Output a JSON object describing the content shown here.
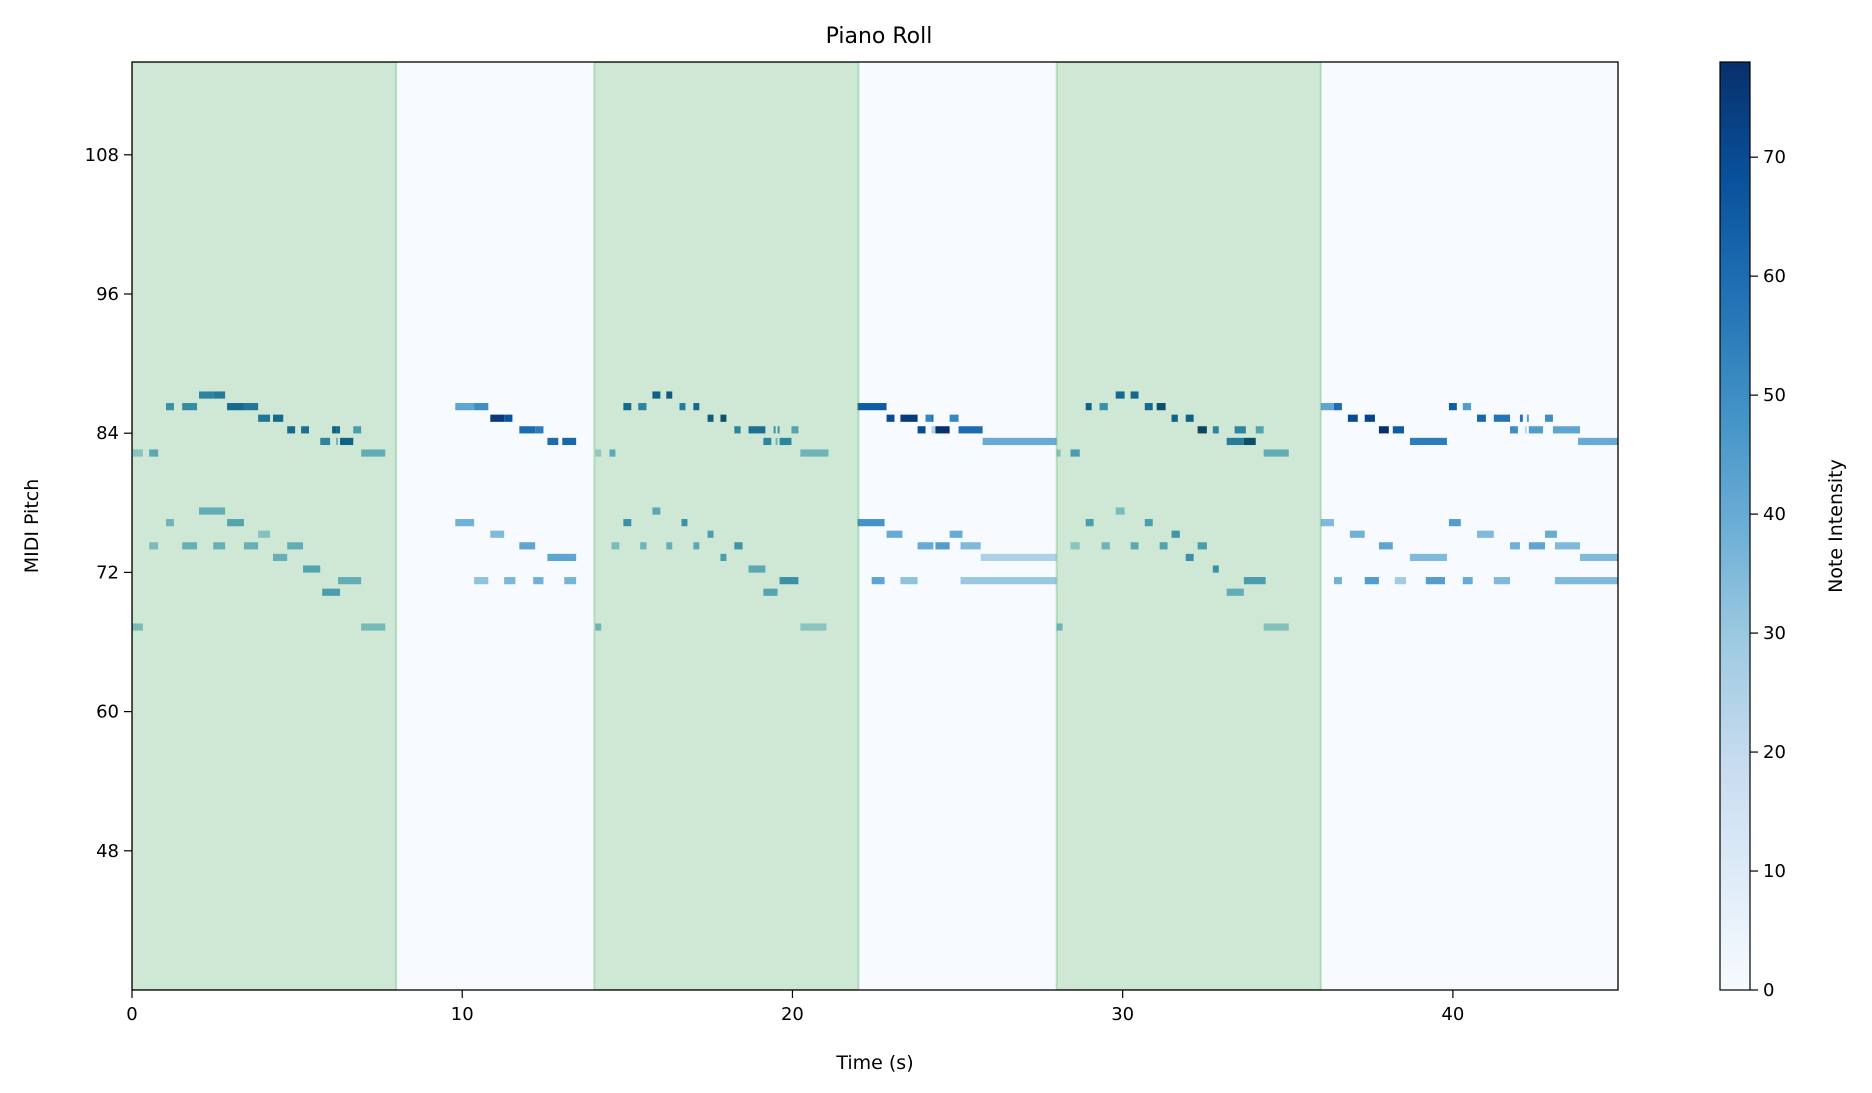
{
  "chart_data": {
    "type": "heatmap",
    "title": "Piano Roll",
    "xlabel": "Time (s)",
    "ylabel": "MIDI Pitch",
    "xlim": [
      0,
      45
    ],
    "ylim": [
      36,
      116
    ],
    "xticks": [
      0,
      10,
      20,
      30,
      40
    ],
    "yticks": [
      48,
      60,
      72,
      84,
      96,
      108
    ],
    "grid": false,
    "colormap": "Blues",
    "colorbar": {
      "label": "Note Intensity",
      "range": [
        0,
        78
      ],
      "ticks": [
        0,
        10,
        20,
        30,
        40,
        50,
        60,
        70
      ]
    },
    "highlight_spans": {
      "color": "#2ca02c",
      "opacity": 0.2,
      "ranges": [
        [
          0,
          8
        ],
        [
          14,
          22
        ],
        [
          28,
          36
        ]
      ]
    },
    "note_fields": [
      "start",
      "end",
      "pitch",
      "intensity"
    ],
    "notes": [
      [
        2.03,
        2.46,
        87,
        55
      ],
      [
        2.46,
        2.82,
        87,
        58
      ],
      [
        1.03,
        1.27,
        86,
        50
      ],
      [
        1.52,
        1.97,
        86,
        52
      ],
      [
        2.88,
        3.39,
        86,
        65
      ],
      [
        3.39,
        3.82,
        86,
        60
      ],
      [
        3.82,
        4.18,
        85,
        60
      ],
      [
        4.27,
        4.58,
        85,
        65
      ],
      [
        4.7,
        4.94,
        84,
        65
      ],
      [
        5.12,
        5.36,
        84,
        62
      ],
      [
        6.06,
        6.18,
        84,
        68
      ],
      [
        6.18,
        6.3,
        84,
        65
      ],
      [
        6.7,
        6.94,
        84,
        45
      ],
      [
        5.7,
        6.0,
        83,
        55
      ],
      [
        6.18,
        6.24,
        83,
        35
      ],
      [
        6.3,
        6.7,
        83,
        68
      ],
      [
        0.03,
        0.33,
        82,
        28
      ],
      [
        0.52,
        0.79,
        82,
        40
      ],
      [
        6.94,
        7.67,
        82,
        38
      ],
      [
        2.03,
        2.82,
        77,
        38
      ],
      [
        1.03,
        1.27,
        76,
        35
      ],
      [
        2.88,
        3.39,
        76,
        42
      ],
      [
        3.82,
        4.18,
        75,
        30
      ],
      [
        0.52,
        0.79,
        74,
        32
      ],
      [
        1.52,
        1.97,
        74,
        37
      ],
      [
        2.46,
        2.82,
        74,
        37
      ],
      [
        3.39,
        3.82,
        74,
        37
      ],
      [
        4.7,
        5.18,
        74,
        38
      ],
      [
        4.27,
        4.7,
        73,
        37
      ],
      [
        5.18,
        5.7,
        72,
        42
      ],
      [
        6.24,
        6.94,
        71,
        38
      ],
      [
        5.76,
        6.3,
        70,
        45
      ],
      [
        0.0,
        0.33,
        67,
        32
      ],
      [
        6.94,
        7.67,
        67,
        33
      ],
      [
        9.79,
        10.36,
        86,
        42
      ],
      [
        10.36,
        10.79,
        86,
        50
      ],
      [
        10.85,
        11.27,
        85,
        75
      ],
      [
        11.27,
        11.52,
        85,
        68
      ],
      [
        11.73,
        12.21,
        84,
        60
      ],
      [
        12.21,
        12.46,
        84,
        55
      ],
      [
        12.58,
        12.91,
        83,
        60
      ],
      [
        13.03,
        13.45,
        83,
        62
      ],
      [
        9.79,
        10.36,
        76,
        38
      ],
      [
        10.85,
        11.27,
        75,
        35
      ],
      [
        11.73,
        12.21,
        74,
        42
      ],
      [
        12.58,
        13.45,
        73,
        42
      ],
      [
        10.36,
        10.79,
        71,
        32
      ],
      [
        11.27,
        11.61,
        71,
        36
      ],
      [
        12.15,
        12.46,
        71,
        38
      ],
      [
        13.09,
        13.45,
        71,
        37
      ],
      [
        15.76,
        16.0,
        87,
        68
      ],
      [
        16.18,
        16.36,
        87,
        70
      ],
      [
        14.88,
        15.12,
        86,
        65
      ],
      [
        15.33,
        15.58,
        86,
        55
      ],
      [
        16.58,
        16.76,
        86,
        58
      ],
      [
        17.0,
        17.18,
        86,
        65
      ],
      [
        17.43,
        17.61,
        85,
        70
      ],
      [
        17.82,
        18.0,
        85,
        75
      ],
      [
        18.24,
        18.43,
        84,
        55
      ],
      [
        18.67,
        19.18,
        84,
        62
      ],
      [
        19.43,
        19.49,
        84,
        50
      ],
      [
        19.55,
        19.61,
        84,
        50
      ],
      [
        19.97,
        20.18,
        84,
        42
      ],
      [
        19.12,
        19.36,
        83,
        55
      ],
      [
        19.49,
        19.55,
        83,
        35
      ],
      [
        19.61,
        19.97,
        83,
        55
      ],
      [
        14.03,
        14.21,
        82,
        25
      ],
      [
        14.46,
        14.64,
        82,
        40
      ],
      [
        20.24,
        21.09,
        82,
        35
      ],
      [
        15.76,
        16.0,
        77,
        40
      ],
      [
        14.88,
        15.12,
        76,
        50
      ],
      [
        16.64,
        16.82,
        76,
        50
      ],
      [
        17.43,
        17.61,
        75,
        45
      ],
      [
        14.52,
        14.76,
        74,
        32
      ],
      [
        15.39,
        15.58,
        74,
        35
      ],
      [
        16.18,
        16.36,
        74,
        37
      ],
      [
        17.0,
        17.18,
        74,
        40
      ],
      [
        18.24,
        18.49,
        74,
        48
      ],
      [
        17.82,
        18.0,
        73,
        45
      ],
      [
        18.67,
        19.18,
        72,
        40
      ],
      [
        19.61,
        20.18,
        71,
        50
      ],
      [
        19.12,
        19.55,
        70,
        42
      ],
      [
        14.03,
        14.21,
        67,
        35
      ],
      [
        20.24,
        21.03,
        67,
        28
      ],
      [
        21.97,
        22.85,
        86,
        65
      ],
      [
        22.85,
        23.09,
        85,
        70
      ],
      [
        23.27,
        23.79,
        85,
        75
      ],
      [
        24.03,
        24.21,
        85,
        52
      ],
      [
        24.21,
        24.27,
        85,
        60
      ],
      [
        24.76,
        25.03,
        85,
        52
      ],
      [
        23.79,
        24.03,
        84,
        70
      ],
      [
        24.21,
        24.33,
        84,
        25
      ],
      [
        24.33,
        24.76,
        84,
        78
      ],
      [
        25.03,
        25.76,
        84,
        60
      ],
      [
        25.76,
        28.0,
        83,
        40
      ],
      [
        21.97,
        22.79,
        76,
        48
      ],
      [
        22.85,
        23.33,
        75,
        40
      ],
      [
        24.76,
        25.15,
        75,
        40
      ],
      [
        23.79,
        24.27,
        74,
        40
      ],
      [
        24.33,
        24.76,
        74,
        45
      ],
      [
        25.09,
        25.7,
        74,
        35
      ],
      [
        25.7,
        28.0,
        73,
        25
      ],
      [
        22.4,
        22.79,
        71,
        42
      ],
      [
        23.27,
        23.79,
        71,
        32
      ],
      [
        25.09,
        28.0,
        71,
        30
      ],
      [
        29.79,
        30.06,
        87,
        65
      ],
      [
        30.24,
        30.48,
        87,
        65
      ],
      [
        28.88,
        29.06,
        86,
        68
      ],
      [
        29.3,
        29.55,
        86,
        50
      ],
      [
        30.67,
        30.91,
        86,
        65
      ],
      [
        31.03,
        31.3,
        86,
        75
      ],
      [
        31.48,
        31.67,
        85,
        68
      ],
      [
        31.91,
        32.15,
        85,
        68
      ],
      [
        32.27,
        32.55,
        84,
        78
      ],
      [
        32.73,
        32.91,
        84,
        55
      ],
      [
        33.39,
        33.73,
        84,
        55
      ],
      [
        34.03,
        34.27,
        84,
        42
      ],
      [
        33.15,
        33.67,
        83,
        58
      ],
      [
        33.67,
        34.03,
        83,
        75
      ],
      [
        28.0,
        28.12,
        82,
        30
      ],
      [
        28.42,
        28.7,
        82,
        45
      ],
      [
        34.27,
        35.03,
        82,
        38
      ],
      [
        29.79,
        30.06,
        77,
        32
      ],
      [
        28.88,
        29.12,
        76,
        45
      ],
      [
        30.67,
        30.91,
        76,
        45
      ],
      [
        31.48,
        31.73,
        75,
        48
      ],
      [
        28.42,
        28.7,
        74,
        28
      ],
      [
        29.36,
        29.61,
        74,
        35
      ],
      [
        30.24,
        30.48,
        74,
        40
      ],
      [
        31.12,
        31.36,
        74,
        42
      ],
      [
        32.27,
        32.55,
        74,
        45
      ],
      [
        31.91,
        32.15,
        73,
        50
      ],
      [
        32.73,
        32.91,
        72,
        50
      ],
      [
        33.67,
        34.33,
        71,
        45
      ],
      [
        33.15,
        33.67,
        70,
        38
      ],
      [
        28.0,
        28.18,
        67,
        35
      ],
      [
        34.27,
        35.03,
        67,
        30
      ],
      [
        36.0,
        36.4,
        86,
        42
      ],
      [
        36.4,
        36.64,
        86,
        60
      ],
      [
        39.88,
        40.12,
        86,
        65
      ],
      [
        40.3,
        40.55,
        86,
        45
      ],
      [
        36.82,
        37.12,
        85,
        70
      ],
      [
        37.33,
        37.64,
        85,
        72
      ],
      [
        40.73,
        41.0,
        85,
        62
      ],
      [
        41.24,
        41.73,
        85,
        58
      ],
      [
        42.03,
        42.12,
        85,
        58
      ],
      [
        42.24,
        42.3,
        85,
        45
      ],
      [
        42.79,
        43.03,
        85,
        50
      ],
      [
        37.76,
        38.06,
        84,
        78
      ],
      [
        38.18,
        38.52,
        84,
        65
      ],
      [
        41.73,
        41.97,
        84,
        50
      ],
      [
        42.18,
        42.24,
        84,
        22
      ],
      [
        42.3,
        42.73,
        84,
        45
      ],
      [
        43.03,
        43.85,
        84,
        42
      ],
      [
        38.7,
        39.82,
        83,
        55
      ],
      [
        43.79,
        45.0,
        83,
        40
      ],
      [
        36.0,
        36.4,
        76,
        35
      ],
      [
        39.88,
        40.24,
        76,
        45
      ],
      [
        36.88,
        37.33,
        75,
        38
      ],
      [
        40.73,
        41.24,
        75,
        35
      ],
      [
        42.79,
        43.15,
        75,
        40
      ],
      [
        37.76,
        38.18,
        74,
        42
      ],
      [
        41.73,
        42.03,
        74,
        38
      ],
      [
        42.3,
        42.79,
        74,
        42
      ],
      [
        43.09,
        43.85,
        74,
        35
      ],
      [
        38.7,
        39.82,
        73,
        35
      ],
      [
        43.85,
        45.0,
        73,
        35
      ],
      [
        36.4,
        36.64,
        71,
        38
      ],
      [
        37.33,
        37.76,
        71,
        45
      ],
      [
        38.24,
        38.58,
        71,
        28
      ],
      [
        39.18,
        39.76,
        71,
        45
      ],
      [
        40.3,
        40.6,
        71,
        40
      ],
      [
        41.24,
        41.73,
        71,
        35
      ],
      [
        43.09,
        45.0,
        71,
        35
      ]
    ]
  }
}
